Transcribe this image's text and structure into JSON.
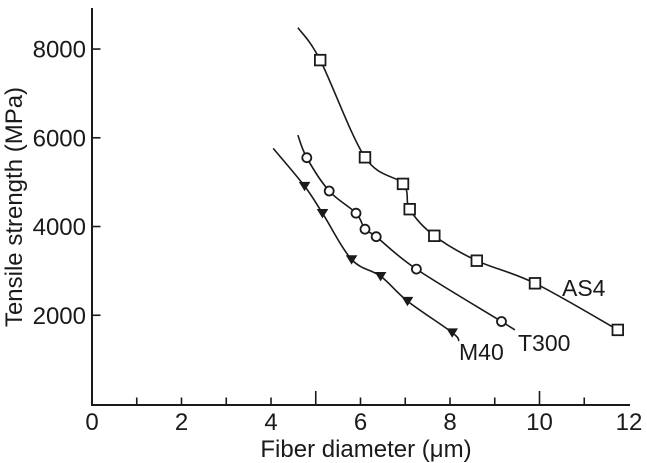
{
  "chart_data": {
    "type": "line",
    "xlabel": "Fiber diameter (μm)",
    "ylabel": "Tensile strength (MPa)",
    "xlim": [
      0,
      12
    ],
    "ylim": [
      0,
      8930
    ],
    "grid": false,
    "legend_position": "inline-labels",
    "line_color": "#1a1a1a",
    "background": "#ffffff",
    "x_axis": {
      "labeled_ticks": [
        0,
        2,
        4,
        6,
        8,
        10,
        12
      ],
      "tick_labels": [
        "0",
        "2",
        "4",
        "6",
        "8",
        "10",
        "12"
      ],
      "minor_ticks": [
        1,
        2,
        3,
        4,
        6,
        7,
        8,
        9,
        11
      ],
      "medium_ticks": [
        5,
        10
      ]
    },
    "y_axis": {
      "labeled_ticks": [
        2000,
        4000,
        6000,
        8000
      ],
      "tick_labels": [
        "2000",
        "4000",
        "6000",
        "8000"
      ]
    },
    "series": [
      {
        "name": "AS4",
        "marker": "open-square",
        "points": [
          [
            5.1,
            7750
          ],
          [
            6.1,
            5560
          ],
          [
            6.95,
            4960
          ],
          [
            7.1,
            4390
          ],
          [
            7.65,
            3790
          ],
          [
            8.6,
            3230
          ],
          [
            9.9,
            2720
          ],
          [
            11.75,
            1670
          ]
        ],
        "curve_start": [
          4.6,
          8480
        ],
        "curve_end": null
      },
      {
        "name": "T300",
        "marker": "open-circle",
        "points": [
          [
            4.8,
            5550
          ],
          [
            5.3,
            4800
          ],
          [
            5.9,
            4300
          ],
          [
            6.1,
            3940
          ],
          [
            6.35,
            3770
          ],
          [
            7.25,
            3040
          ],
          [
            9.15,
            1860
          ]
        ],
        "curve_start": [
          4.6,
          6060
        ],
        "curve_end": [
          9.45,
          1670
        ]
      },
      {
        "name": "M40",
        "marker": "filled-triangle-down",
        "points": [
          [
            4.75,
            4910
          ],
          [
            5.15,
            4300
          ],
          [
            5.8,
            3260
          ],
          [
            6.45,
            2880
          ],
          [
            7.05,
            2320
          ],
          [
            8.05,
            1610
          ]
        ],
        "curve_start": [
          4.05,
          5760
        ],
        "curve_end": [
          8.2,
          1420
        ]
      }
    ]
  }
}
